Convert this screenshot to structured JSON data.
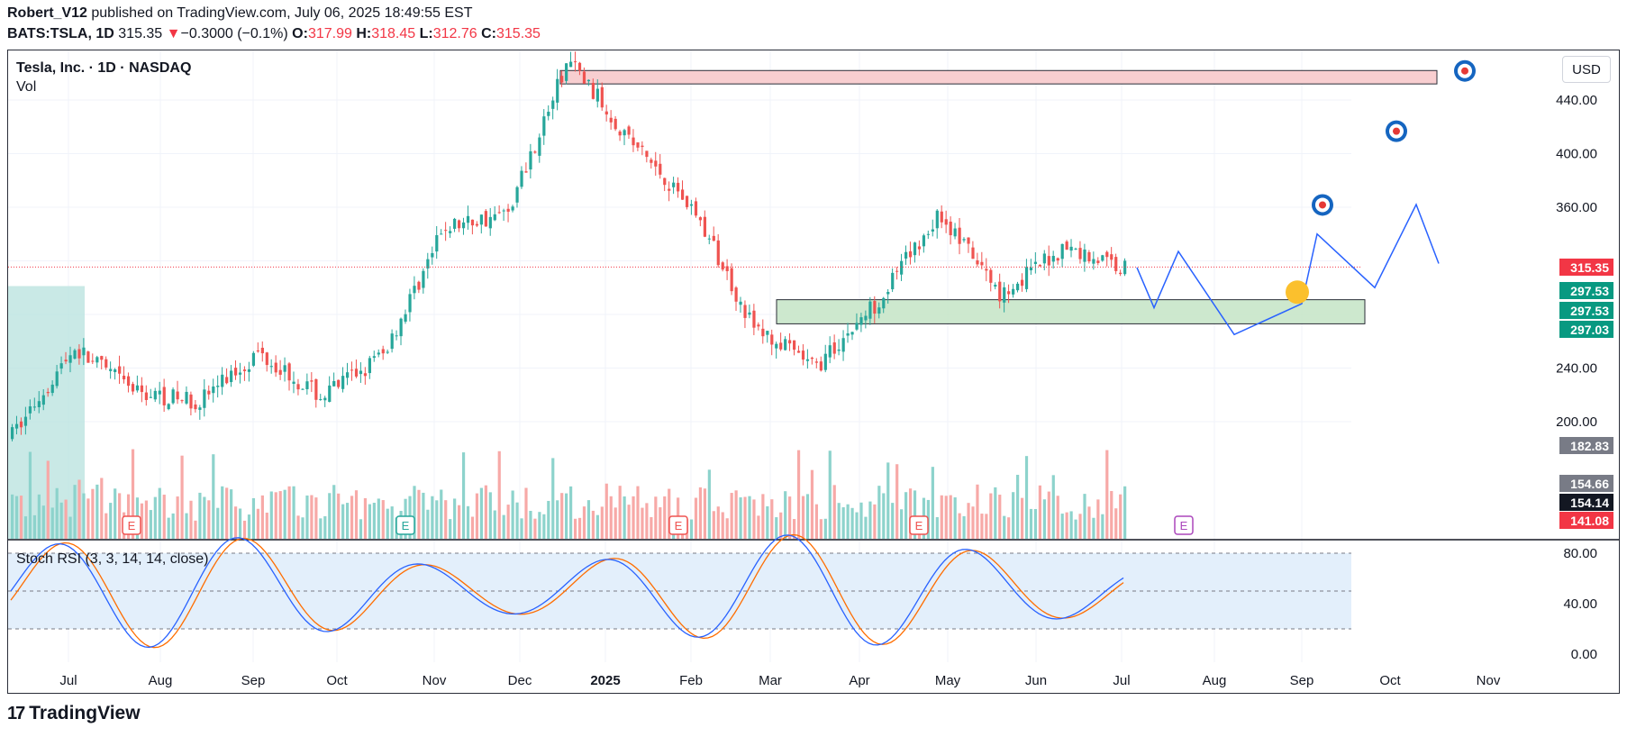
{
  "header": {
    "author": "Robert_V12",
    "published_text": "published on TradingView.com, July 06, 2025 18:49:55 EST",
    "symbol": "BATS:TSLA, 1D",
    "last": "315.35",
    "change_arrow": "▼",
    "change": "−0.3000 (−0.1%)",
    "o_label": "O:",
    "o": "317.99",
    "h_label": "H:",
    "h": "318.45",
    "l_label": "L:",
    "l": "312.76",
    "c_label": "C:",
    "c": "315.35"
  },
  "legend": {
    "title": "Tesla, Inc. · 1D · NASDAQ",
    "volume_label": "Vol"
  },
  "currency_button": "USD",
  "rsi_label": "Stoch RSI (3, 3, 14, 14, close)",
  "brand": {
    "logo": "17",
    "name": "TradingView"
  },
  "colors": {
    "up": "#26a69a",
    "down": "#ef5350",
    "up_vol": "#8dd3cc",
    "down_vol": "#f7a9a7",
    "projection": "#2962ff",
    "supply_zone": "#f8c9cc",
    "demand_zone": "#c8e6c9",
    "k_line": "#2962ff",
    "d_line": "#ff6d00",
    "rsi_band": "#e3effb"
  },
  "chart_data": [
    {
      "type": "candlestick",
      "title": "Tesla, Inc. · 1D · NASDAQ",
      "x_months": [
        "Jul",
        "Aug",
        "Sep",
        "Oct",
        "Nov",
        "Dec",
        "2025",
        "Feb",
        "Mar",
        "Apr",
        "May",
        "Jun",
        "Jul",
        "Aug",
        "Sep",
        "Oct",
        "Nov"
      ],
      "y_ticks": [
        200,
        240,
        280,
        320,
        360,
        400,
        440
      ],
      "y_tick_labels": [
        "200.00",
        "240.00",
        "",
        "",
        "360.00",
        "400.00",
        "440.00"
      ],
      "ylim": [
        160,
        475
      ],
      "price_tags": [
        {
          "value": "315.35",
          "color": "#f23645"
        },
        {
          "value": "297.53",
          "color": "#089981"
        },
        {
          "value": "297.53",
          "color": "#089981"
        },
        {
          "value": "297.03",
          "color": "#089981"
        },
        {
          "value": "182.83",
          "color": "#787b86"
        },
        {
          "value": "154.66",
          "color": "#787b86"
        },
        {
          "value": "154.14",
          "color": "#131722"
        },
        {
          "value": "141.08",
          "color": "#f23645"
        }
      ],
      "approx_close_path": [
        {
          "month": "Jul",
          "close": 190
        },
        {
          "month": "mid-Jul",
          "close": 255
        },
        {
          "month": "Aug",
          "close": 222
        },
        {
          "month": "Sep",
          "close": 215
        },
        {
          "month": "Oct",
          "close": 252
        },
        {
          "month": "mid-Oct",
          "close": 218
        },
        {
          "month": "Nov",
          "close": 250
        },
        {
          "month": "mid-Nov",
          "close": 345
        },
        {
          "month": "Dec",
          "close": 355
        },
        {
          "month": "mid-Dec",
          "close": 470
        },
        {
          "month": "2025",
          "close": 410
        },
        {
          "month": "Feb",
          "close": 360
        },
        {
          "month": "Mar",
          "close": 270
        },
        {
          "month": "Apr",
          "close": 240
        },
        {
          "month": "May",
          "close": 290
        },
        {
          "month": "late-May",
          "close": 355
        },
        {
          "month": "Jun",
          "close": 295
        },
        {
          "month": "mid-Jun",
          "close": 330
        },
        {
          "month": "Jul",
          "close": 315
        }
      ],
      "zones": [
        {
          "name": "supply",
          "low": 452,
          "high": 462
        },
        {
          "name": "demand",
          "low": 273,
          "high": 291
        }
      ],
      "projection_path": [
        315,
        285,
        327,
        265,
        288,
        340,
        300,
        362,
        318,
        357,
        425
      ]
    },
    {
      "type": "line",
      "title": "Stoch RSI (3, 3, 14, 14, close)",
      "y_ticks": [
        0,
        40,
        80
      ],
      "y_tick_labels": [
        "0.00",
        "40.00",
        "80.00"
      ],
      "ylim": [
        -10,
        100
      ],
      "band": [
        20,
        80
      ]
    }
  ]
}
